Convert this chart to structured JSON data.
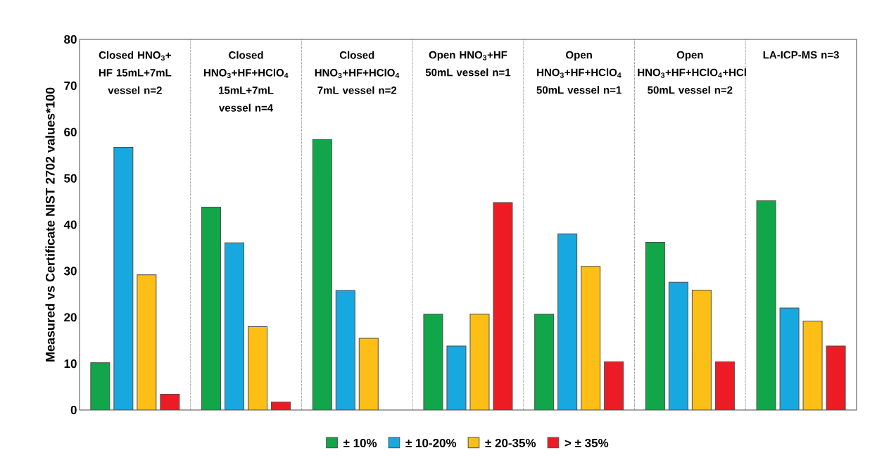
{
  "chart_data": {
    "type": "bar",
    "ylabel": "Measured vs Certificate NIST 2702 values*100",
    "categories": [
      "Closed HNO$_{3}$+ HF 15mL+7mL vessel n=2",
      "Closed HNO$_{3}$+HF+HClO$_{4}$ 15mL+7mL vessel n=4",
      "Closed HNO$_{3}$+HF+HClO$_{4}$ 7mL vessel n=2",
      "Open HNO$_{3}$+HF 50mL vessel n=1",
      "Open HNO$_{3}$+HF+HClO$_{4}$ 50mL vessel n=1",
      "Open HNO$_{3}$+HF+HClO$_{4}$+HCl 50mL vessel n=2",
      "LA-ICP-MS n=3"
    ],
    "series": [
      {
        "name": "± 10%",
        "color": "#12a64a",
        "values": [
          10.2,
          43.8,
          58.4,
          20.7,
          20.7,
          36.2,
          45.2
        ]
      },
      {
        "name": "± 10-20%",
        "color": "#17a8e0",
        "values": [
          56.7,
          36.1,
          25.8,
          13.8,
          38.0,
          27.6,
          22.0
        ]
      },
      {
        "name": "± 20-35%",
        "color": "#fdbf16",
        "values": [
          29.2,
          18.0,
          15.5,
          20.7,
          31.0,
          25.9,
          19.2
        ]
      },
      {
        "name": "> ± 35%",
        "color": "#ed1c24",
        "values": [
          3.4,
          1.7,
          null,
          44.8,
          10.4,
          10.4,
          13.8
        ]
      }
    ],
    "ylim": [
      0,
      80
    ],
    "yticks": [
      0,
      10,
      20,
      30,
      40,
      50,
      60,
      70,
      80
    ],
    "grid": "x",
    "legend": "bottom"
  }
}
